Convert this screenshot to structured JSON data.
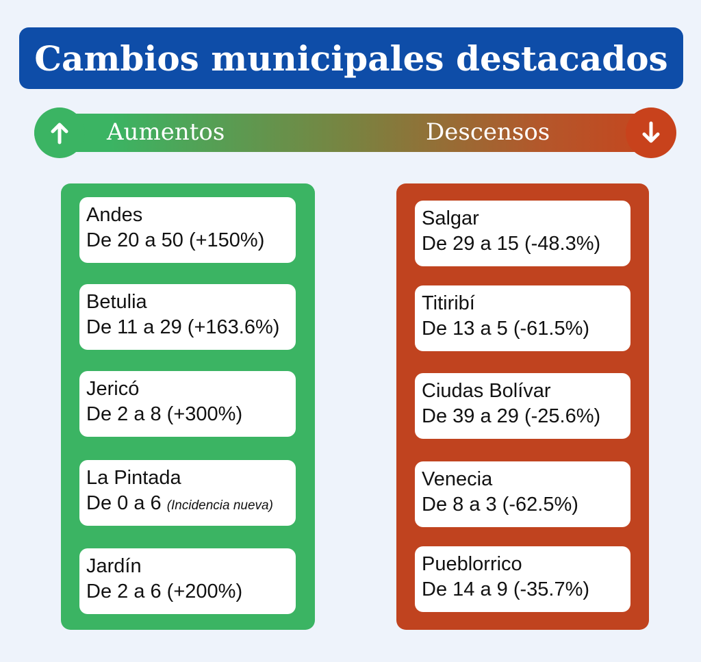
{
  "title": "Cambios municipales destacados",
  "legend": {
    "increases_label": "Aumentos",
    "decreases_label": "Descensos",
    "increases_icon": "arrow-up-icon",
    "decreases_icon": "arrow-down-icon",
    "increase_color": "#3bb463",
    "decrease_color": "#c0431f"
  },
  "increases": [
    {
      "name": "Andes",
      "change": "De 20 a 50 (+150%)",
      "note": ""
    },
    {
      "name": "Betulia",
      "change": "De 11 a 29 (+163.6%)",
      "note": ""
    },
    {
      "name": "Jericó",
      "change": "De 2 a 8 (+300%)",
      "note": ""
    },
    {
      "name": "La Pintada",
      "change": "De 0 a 6 ",
      "note": "(Incidencia nueva)"
    },
    {
      "name": "Jardín",
      "change": "De 2 a 6 (+200%)",
      "note": ""
    }
  ],
  "decreases": [
    {
      "name": "Salgar",
      "change": "De 29 a 15 (-48.3%)"
    },
    {
      "name": "Titiribí",
      "change": "De 13 a 5 (-61.5%)"
    },
    {
      "name": "Ciudas Bolívar",
      "change": "De 39 a 29 (-25.6%)"
    },
    {
      "name": "Venecia",
      "change": "De 8 a 3 (-62.5%)"
    },
    {
      "name": "Pueblorrico",
      "change": "De 14 a 9 (-35.7%)"
    }
  ]
}
